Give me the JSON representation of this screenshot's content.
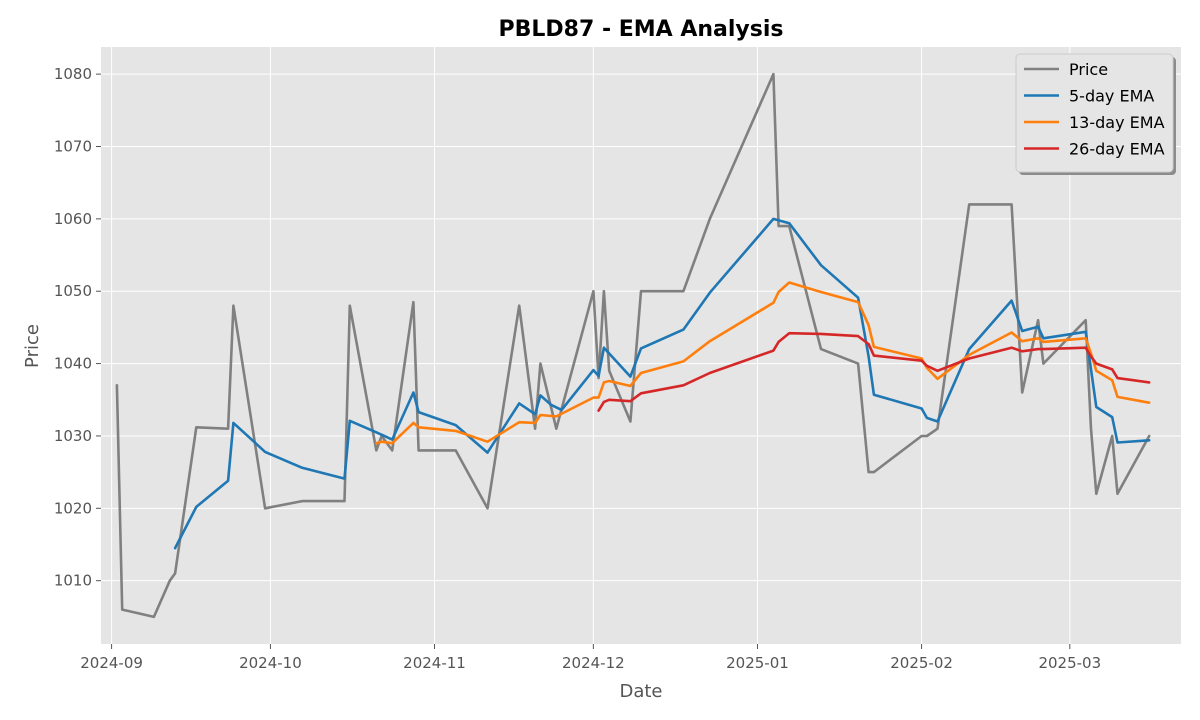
{
  "chart_data": {
    "type": "line",
    "title": "PBLD87 - EMA Analysis",
    "xlabel": "Date",
    "ylabel": "Price",
    "x_range": [
      "2024-08-30",
      "2025-03-22"
    ],
    "ylim": [
      1001.25,
      1083.75
    ],
    "x_ticks": [
      {
        "date": "2024-09-01",
        "label": "2024-09"
      },
      {
        "date": "2024-10-01",
        "label": "2024-10"
      },
      {
        "date": "2024-11-01",
        "label": "2024-11"
      },
      {
        "date": "2024-12-01",
        "label": "2024-12"
      },
      {
        "date": "2025-01-01",
        "label": "2025-01"
      },
      {
        "date": "2025-02-01",
        "label": "2025-02"
      },
      {
        "date": "2025-03-01",
        "label": "2025-03"
      }
    ],
    "y_ticks": [
      1010,
      1020,
      1030,
      1040,
      1050,
      1060,
      1070,
      1080
    ],
    "grid": true,
    "legend_position": "top-right",
    "series": [
      {
        "name": "Price",
        "color": "#808080",
        "points": [
          [
            "2024-09-02",
            1037
          ],
          [
            "2024-09-03",
            1006
          ],
          [
            "2024-09-09",
            1005
          ],
          [
            "2024-09-12",
            1010
          ],
          [
            "2024-09-13",
            1011
          ],
          [
            "2024-09-17",
            1031.2
          ],
          [
            "2024-09-23",
            1031
          ],
          [
            "2024-09-24",
            1048
          ],
          [
            "2024-09-30",
            1020
          ],
          [
            "2024-10-07",
            1021
          ],
          [
            "2024-10-15",
            1021
          ],
          [
            "2024-10-16",
            1048
          ],
          [
            "2024-10-21",
            1028
          ],
          [
            "2024-10-22",
            1030
          ],
          [
            "2024-10-24",
            1028
          ],
          [
            "2024-10-28",
            1048.5
          ],
          [
            "2024-10-29",
            1028
          ],
          [
            "2024-11-05",
            1028
          ],
          [
            "2024-11-11",
            1020
          ],
          [
            "2024-11-17",
            1048
          ],
          [
            "2024-11-20",
            1031
          ],
          [
            "2024-11-21",
            1040
          ],
          [
            "2024-11-24",
            1031
          ],
          [
            "2024-12-01",
            1050
          ],
          [
            "2024-12-02",
            1038
          ],
          [
            "2024-12-03",
            1050
          ],
          [
            "2024-12-04",
            1039
          ],
          [
            "2024-12-08",
            1032
          ],
          [
            "2024-12-10",
            1050
          ],
          [
            "2024-12-18",
            1050
          ],
          [
            "2024-12-23",
            1060
          ],
          [
            "2025-01-04",
            1080
          ],
          [
            "2025-01-05",
            1059
          ],
          [
            "2025-01-07",
            1059
          ],
          [
            "2025-01-13",
            1042
          ],
          [
            "2025-01-20",
            1040
          ],
          [
            "2025-01-22",
            1025
          ],
          [
            "2025-01-23",
            1025
          ],
          [
            "2025-02-01",
            1030
          ],
          [
            "2025-02-02",
            1030
          ],
          [
            "2025-02-04",
            1031
          ],
          [
            "2025-02-10",
            1062
          ],
          [
            "2025-02-18",
            1062
          ],
          [
            "2025-02-20",
            1036
          ],
          [
            "2025-02-23",
            1046
          ],
          [
            "2025-02-24",
            1040
          ],
          [
            "2025-03-04",
            1046
          ],
          [
            "2025-03-05",
            1031
          ],
          [
            "2025-03-06",
            1022
          ],
          [
            "2025-03-09",
            1030
          ],
          [
            "2025-03-10",
            1022
          ],
          [
            "2025-03-16",
            1030
          ]
        ]
      },
      {
        "name": "5-day EMA",
        "color": "#1f77b4",
        "points": [
          [
            "2024-09-13",
            1014.5
          ],
          [
            "2024-09-17",
            1020.2
          ],
          [
            "2024-09-23",
            1023.8
          ],
          [
            "2024-09-24",
            1031.8
          ],
          [
            "2024-09-30",
            1027.8
          ],
          [
            "2024-10-07",
            1025.6
          ],
          [
            "2024-10-15",
            1024.1
          ],
          [
            "2024-10-16",
            1032.1
          ],
          [
            "2024-10-21",
            1030.5
          ],
          [
            "2024-10-24",
            1029.5
          ],
          [
            "2024-10-28",
            1036
          ],
          [
            "2024-10-29",
            1033.3
          ],
          [
            "2024-11-05",
            1031.5
          ],
          [
            "2024-11-11",
            1027.7
          ],
          [
            "2024-11-17",
            1034.5
          ],
          [
            "2024-11-20",
            1033
          ],
          [
            "2024-11-21",
            1035.6
          ],
          [
            "2024-11-23",
            1034.3
          ],
          [
            "2024-11-25",
            1033.6
          ],
          [
            "2024-12-01",
            1039.1
          ],
          [
            "2024-12-02",
            1038.3
          ],
          [
            "2024-12-03",
            1042.2
          ],
          [
            "2024-12-08",
            1038.2
          ],
          [
            "2024-12-10",
            1042.1
          ],
          [
            "2024-12-18",
            1044.7
          ],
          [
            "2024-12-23",
            1049.8
          ],
          [
            "2025-01-04",
            1060
          ],
          [
            "2025-01-07",
            1059.4
          ],
          [
            "2025-01-13",
            1053.6
          ],
          [
            "2025-01-20",
            1049.1
          ],
          [
            "2025-01-22",
            1041
          ],
          [
            "2025-01-23",
            1035.7
          ],
          [
            "2025-02-01",
            1033.8
          ],
          [
            "2025-02-02",
            1032.5
          ],
          [
            "2025-02-04",
            1032
          ],
          [
            "2025-02-10",
            1042
          ],
          [
            "2025-02-18",
            1048.7
          ],
          [
            "2025-02-20",
            1044.5
          ],
          [
            "2025-02-23",
            1045.1
          ],
          [
            "2025-02-24",
            1043.5
          ],
          [
            "2025-03-04",
            1044.4
          ],
          [
            "2025-03-06",
            1034
          ],
          [
            "2025-03-09",
            1032.6
          ],
          [
            "2025-03-10",
            1029.1
          ],
          [
            "2025-03-16",
            1029.4
          ]
        ]
      },
      {
        "name": "13-day EMA",
        "color": "#ff7f0e",
        "points": [
          [
            "2024-10-21",
            1029
          ],
          [
            "2024-10-22",
            1029.2
          ],
          [
            "2024-10-24",
            1029
          ],
          [
            "2024-10-28",
            1031.8
          ],
          [
            "2024-10-29",
            1031.2
          ],
          [
            "2024-11-05",
            1030.7
          ],
          [
            "2024-11-11",
            1029.2
          ],
          [
            "2024-11-17",
            1031.9
          ],
          [
            "2024-11-20",
            1031.8
          ],
          [
            "2024-11-21",
            1032.9
          ],
          [
            "2024-11-24",
            1032.7
          ],
          [
            "2024-12-01",
            1035.3
          ],
          [
            "2024-12-02",
            1035.3
          ],
          [
            "2024-12-03",
            1037.4
          ],
          [
            "2024-12-04",
            1037.6
          ],
          [
            "2024-12-08",
            1036.9
          ],
          [
            "2024-12-10",
            1038.7
          ],
          [
            "2024-12-18",
            1040.3
          ],
          [
            "2024-12-23",
            1043.1
          ],
          [
            "2025-01-04",
            1048.4
          ],
          [
            "2025-01-05",
            1049.9
          ],
          [
            "2025-01-07",
            1051.2
          ],
          [
            "2025-01-13",
            1049.9
          ],
          [
            "2025-01-20",
            1048.5
          ],
          [
            "2025-01-22",
            1045.3
          ],
          [
            "2025-01-23",
            1042.3
          ],
          [
            "2025-02-01",
            1040.7
          ],
          [
            "2025-02-02",
            1039.4
          ],
          [
            "2025-02-04",
            1037.9
          ],
          [
            "2025-02-10",
            1041.2
          ],
          [
            "2025-02-18",
            1044.3
          ],
          [
            "2025-02-20",
            1043.1
          ],
          [
            "2025-02-23",
            1043.5
          ],
          [
            "2025-02-24",
            1043
          ],
          [
            "2025-03-04",
            1043.5
          ],
          [
            "2025-03-05",
            1041.4
          ],
          [
            "2025-03-06",
            1039
          ],
          [
            "2025-03-09",
            1037.7
          ],
          [
            "2025-03-10",
            1035.4
          ],
          [
            "2025-03-16",
            1034.6
          ]
        ]
      },
      {
        "name": "26-day EMA",
        "color": "#d62728",
        "points": [
          [
            "2024-12-02",
            1033.5
          ],
          [
            "2024-12-03",
            1034.7
          ],
          [
            "2024-12-04",
            1035
          ],
          [
            "2024-12-08",
            1034.8
          ],
          [
            "2024-12-10",
            1035.9
          ],
          [
            "2024-12-18",
            1037
          ],
          [
            "2024-12-23",
            1038.7
          ],
          [
            "2025-01-04",
            1041.8
          ],
          [
            "2025-01-05",
            1043
          ],
          [
            "2025-01-07",
            1044.2
          ],
          [
            "2025-01-13",
            1044.1
          ],
          [
            "2025-01-20",
            1043.8
          ],
          [
            "2025-01-22",
            1042.7
          ],
          [
            "2025-01-23",
            1041.1
          ],
          [
            "2025-02-01",
            1040.4
          ],
          [
            "2025-02-02",
            1039.7
          ],
          [
            "2025-02-04",
            1039
          ],
          [
            "2025-02-10",
            1040.7
          ],
          [
            "2025-02-18",
            1042.2
          ],
          [
            "2025-02-20",
            1041.7
          ],
          [
            "2025-02-23",
            1042
          ],
          [
            "2025-02-24",
            1042
          ],
          [
            "2025-03-04",
            1042.2
          ],
          [
            "2025-03-05",
            1041
          ],
          [
            "2025-03-06",
            1040
          ],
          [
            "2025-03-09",
            1039.2
          ],
          [
            "2025-03-10",
            1038
          ],
          [
            "2025-03-16",
            1037.4
          ]
        ]
      }
    ]
  }
}
